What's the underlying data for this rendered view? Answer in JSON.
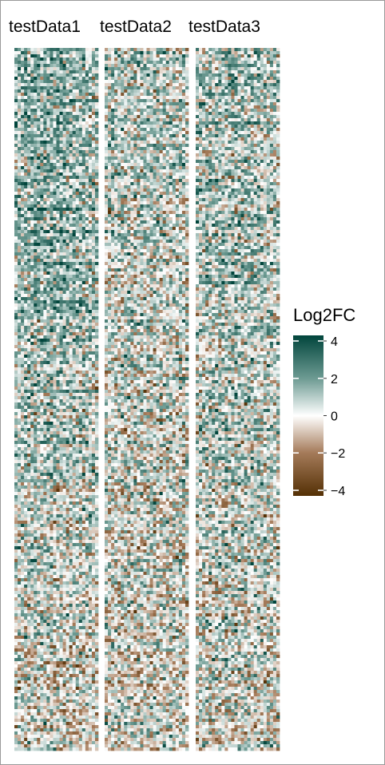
{
  "chart_data": {
    "type": "heatmap",
    "panels": [
      {
        "name": "testData1",
        "seed": 11,
        "bias": [
          1.9,
          1.4,
          1.5,
          1.0,
          0.8,
          0.4,
          0.1,
          -0.2
        ]
      },
      {
        "name": "testData2",
        "seed": 23,
        "bias": [
          0.7,
          0.5,
          0.4,
          0.3,
          0.2,
          0.1,
          0.0,
          -0.1
        ]
      },
      {
        "name": "testData3",
        "seed": 37,
        "bias": [
          1.2,
          1.0,
          0.8,
          0.6,
          0.5,
          0.3,
          0.0,
          -0.2
        ]
      }
    ],
    "rows": 220,
    "columns_per_panel": 26,
    "legend": {
      "title": "Log2FC",
      "ticks": [
        4,
        2,
        0,
        -2,
        -4
      ],
      "tick_labels": [
        "4",
        "2",
        "0",
        "−2",
        "−4"
      ],
      "range": [
        -4.3,
        4.3
      ],
      "placement": "right"
    },
    "color_scale": {
      "high": "#01453c",
      "mid_high": "#6e9b93",
      "mid": "#ffffff",
      "mid_low": "#a57b5a",
      "low": "#543005"
    },
    "grid": false
  }
}
